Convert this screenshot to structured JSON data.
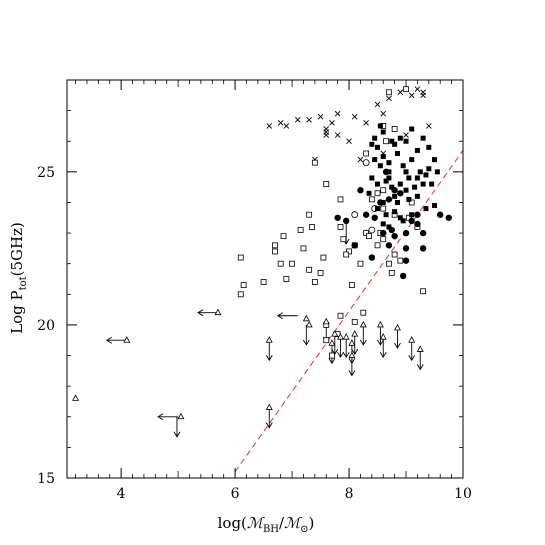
{
  "chart_data": {
    "type": "scatter",
    "xlabel": {
      "main": "log(",
      "sym1": "ℳ",
      "sub1": "BH",
      "slash": "/",
      "sym2": "ℳ",
      "sub2": "⊙",
      "close": ")"
    },
    "ylabel": {
      "main": "Log P",
      "sub": "tot",
      "rest": "(5GHz)"
    },
    "xlim": [
      3.05,
      10.0
    ],
    "ylim": [
      15,
      28
    ],
    "x_ticks": [
      4,
      6,
      8,
      10
    ],
    "y_ticks": [
      15,
      20,
      25
    ],
    "grid": false,
    "line": {
      "style": "dashed",
      "color": "#e03030",
      "points": [
        [
          6.0,
          15.2
        ],
        [
          10.0,
          25.7
        ]
      ]
    },
    "series": [
      {
        "marker": "cross",
        "points": [
          [
            6.6,
            26.5
          ],
          [
            6.8,
            26.6
          ],
          [
            6.9,
            26.5
          ],
          [
            7.1,
            26.7
          ],
          [
            7.3,
            26.7
          ],
          [
            7.5,
            26.8
          ],
          [
            7.6,
            26.4
          ],
          [
            7.7,
            26.6
          ],
          [
            7.8,
            26.9
          ],
          [
            8.1,
            26.8
          ],
          [
            8.3,
            26.6
          ],
          [
            8.6,
            26.9
          ],
          [
            8.7,
            27.4
          ],
          [
            8.9,
            27.6
          ],
          [
            9.1,
            27.5
          ],
          [
            9.3,
            27.6
          ],
          [
            9.4,
            26.5
          ],
          [
            9.0,
            26.2
          ],
          [
            8.6,
            25.6
          ],
          [
            7.8,
            26.2
          ],
          [
            7.6,
            26.2
          ],
          [
            7.6,
            26.3
          ],
          [
            8.0,
            26.0
          ],
          [
            8.2,
            25.4
          ],
          [
            8.5,
            27.2
          ],
          [
            9.2,
            27.7
          ],
          [
            9.3,
            27.5
          ],
          [
            7.4,
            25.4
          ]
        ]
      },
      {
        "marker": "open-square",
        "points": [
          [
            6.1,
            22.2
          ],
          [
            6.1,
            21.0
          ],
          [
            6.15,
            21.3
          ],
          [
            6.5,
            21.4
          ],
          [
            6.7,
            22.6
          ],
          [
            6.7,
            22.4
          ],
          [
            6.8,
            22.0
          ],
          [
            6.85,
            22.9
          ],
          [
            7.0,
            22.0
          ],
          [
            6.9,
            21.5
          ],
          [
            7.15,
            23.1
          ],
          [
            7.3,
            23.6
          ],
          [
            7.35,
            23.2
          ],
          [
            7.2,
            22.5
          ],
          [
            7.4,
            21.4
          ],
          [
            7.5,
            21.7
          ],
          [
            7.55,
            22.2
          ],
          [
            7.3,
            21.8
          ],
          [
            7.4,
            25.3
          ],
          [
            7.6,
            24.6
          ],
          [
            7.6,
            19.5
          ],
          [
            7.6,
            20.0
          ],
          [
            7.7,
            19.0
          ],
          [
            7.9,
            22.8
          ],
          [
            8.0,
            22.4
          ],
          [
            8.1,
            20.1
          ],
          [
            8.1,
            22.6
          ],
          [
            7.85,
            23.2
          ],
          [
            7.85,
            24.1
          ],
          [
            7.95,
            22.3
          ],
          [
            8.05,
            21.3
          ],
          [
            8.2,
            22.0
          ],
          [
            8.3,
            23.0
          ],
          [
            8.35,
            22.9
          ],
          [
            8.4,
            24.1
          ],
          [
            8.5,
            24.3
          ],
          [
            8.55,
            23.0
          ],
          [
            8.5,
            22.6
          ],
          [
            8.6,
            22.8
          ],
          [
            8.6,
            23.8
          ],
          [
            8.65,
            26.0
          ],
          [
            8.7,
            22.0
          ],
          [
            8.8,
            22.3
          ],
          [
            8.8,
            23.6
          ],
          [
            8.9,
            22.1
          ],
          [
            9.05,
            23.5
          ],
          [
            9.2,
            23.2
          ],
          [
            9.3,
            21.1
          ],
          [
            8.25,
            20.4
          ],
          [
            7.85,
            20.3
          ],
          [
            7.8,
            19.7
          ],
          [
            8.6,
            26.5
          ],
          [
            8.8,
            26.4
          ],
          [
            8.3,
            25.6
          ],
          [
            8.7,
            27.6
          ],
          [
            9.0,
            27.7
          ],
          [
            8.75,
            21.7
          ],
          [
            8.6,
            24.4
          ],
          [
            9.1,
            24.0
          ]
        ]
      },
      {
        "marker": "open-circle",
        "points": [
          [
            8.3,
            25.3
          ],
          [
            8.1,
            23.6
          ],
          [
            8.4,
            23.1
          ],
          [
            8.45,
            23.8
          ]
        ]
      },
      {
        "marker": "filled-square",
        "points": [
          [
            8.5,
            25.8
          ],
          [
            8.6,
            25.5
          ],
          [
            8.55,
            25.2
          ],
          [
            8.7,
            25.0
          ],
          [
            8.65,
            24.7
          ],
          [
            8.75,
            24.5
          ],
          [
            8.8,
            24.2
          ],
          [
            8.7,
            24.8
          ],
          [
            8.85,
            25.6
          ],
          [
            8.8,
            25.9
          ],
          [
            8.9,
            26.1
          ],
          [
            8.95,
            25.2
          ],
          [
            9.0,
            25.0
          ],
          [
            9.05,
            24.8
          ],
          [
            9.1,
            25.4
          ],
          [
            9.0,
            26.0
          ],
          [
            8.9,
            24.6
          ],
          [
            8.6,
            24.0
          ],
          [
            8.65,
            23.6
          ],
          [
            9.15,
            24.5
          ],
          [
            9.2,
            24.8
          ],
          [
            9.25,
            25.0
          ],
          [
            9.3,
            24.6
          ],
          [
            9.35,
            24.9
          ],
          [
            9.45,
            24.6
          ],
          [
            9.5,
            25.4
          ],
          [
            9.4,
            25.8
          ],
          [
            9.5,
            23.9
          ],
          [
            9.2,
            24.2
          ],
          [
            8.4,
            25.9
          ],
          [
            8.45,
            25.4
          ],
          [
            8.6,
            26.3
          ],
          [
            9.1,
            26.4
          ],
          [
            9.2,
            25.7
          ],
          [
            8.7,
            25.3
          ],
          [
            8.5,
            24.6
          ],
          [
            8.8,
            23.7
          ],
          [
            9.0,
            24.4
          ],
          [
            9.1,
            23.6
          ],
          [
            8.95,
            23.4
          ],
          [
            8.5,
            23.8
          ],
          [
            8.6,
            23.3
          ],
          [
            8.7,
            23.2
          ],
          [
            9.3,
            26.1
          ],
          [
            8.75,
            26.0
          ],
          [
            8.4,
            24.8
          ],
          [
            9.05,
            24.1
          ],
          [
            8.45,
            26.1
          ],
          [
            8.9,
            23.5
          ],
          [
            8.85,
            24.0
          ],
          [
            8.55,
            26.5
          ],
          [
            9.4,
            25.1
          ],
          [
            9.55,
            25.0
          ],
          [
            9.35,
            23.8
          ],
          [
            8.35,
            24.3
          ]
        ]
      },
      {
        "marker": "filled-circle",
        "points": [
          [
            7.8,
            23.5
          ],
          [
            7.95,
            23.4
          ],
          [
            8.1,
            22.6
          ],
          [
            8.4,
            22.2
          ],
          [
            8.7,
            22.6
          ],
          [
            8.75,
            23.1
          ],
          [
            8.8,
            22.9
          ],
          [
            8.9,
            24.3
          ],
          [
            9.0,
            22.5
          ],
          [
            9.0,
            23.0
          ],
          [
            9.1,
            23.4
          ],
          [
            9.2,
            23.3
          ],
          [
            9.2,
            23.6
          ],
          [
            9.3,
            22.5
          ],
          [
            9.3,
            23.0
          ],
          [
            9.6,
            23.6
          ],
          [
            9.75,
            23.5
          ],
          [
            9.0,
            22.1
          ],
          [
            8.95,
            21.6
          ],
          [
            8.6,
            23.0
          ],
          [
            8.55,
            24.0
          ],
          [
            8.2,
            24.4
          ],
          [
            8.7,
            24.1
          ],
          [
            8.3,
            23.6
          ],
          [
            8.45,
            23.5
          ],
          [
            8.8,
            24.4
          ],
          [
            8.65,
            25.0
          ]
        ]
      },
      {
        "marker": "open-triangle",
        "points": [
          [
            3.2,
            17.6
          ],
          [
            4.1,
            19.5
          ],
          [
            5.7,
            20.4
          ],
          [
            5.05,
            17.0
          ],
          [
            7.25,
            20.2
          ],
          [
            6.6,
            19.5
          ],
          [
            6.6,
            17.3
          ],
          [
            7.3,
            20.0
          ],
          [
            7.6,
            20.1
          ],
          [
            7.75,
            19.7
          ],
          [
            7.85,
            19.6
          ],
          [
            7.95,
            19.6
          ],
          [
            7.7,
            19.4
          ],
          [
            8.05,
            19.4
          ],
          [
            8.1,
            19.7
          ],
          [
            8.05,
            19.0
          ],
          [
            8.25,
            20.0
          ],
          [
            8.55,
            20.0
          ],
          [
            8.6,
            19.6
          ],
          [
            8.85,
            19.9
          ],
          [
            9.1,
            19.5
          ],
          [
            9.25,
            19.2
          ]
        ]
      }
    ],
    "upper_limits": [
      [
        4.98,
        17.0
      ],
      [
        6.6,
        19.5
      ],
      [
        6.6,
        17.3
      ],
      [
        7.25,
        20.0
      ],
      [
        7.6,
        20.1
      ],
      [
        7.75,
        19.7
      ],
      [
        7.85,
        19.6
      ],
      [
        7.95,
        19.6
      ],
      [
        7.7,
        19.4
      ],
      [
        8.05,
        19.4
      ],
      [
        8.1,
        19.7
      ],
      [
        8.05,
        19.0
      ],
      [
        8.25,
        20.0
      ],
      [
        8.55,
        20.0
      ],
      [
        8.6,
        19.6
      ],
      [
        8.85,
        19.9
      ],
      [
        9.1,
        19.5
      ],
      [
        9.25,
        19.2
      ],
      [
        7.95,
        23.3
      ]
    ],
    "lower_limits": [
      [
        4.1,
        19.5
      ],
      [
        5.7,
        20.4
      ],
      [
        5.0,
        17.0
      ],
      [
        7.1,
        20.3
      ]
    ]
  }
}
